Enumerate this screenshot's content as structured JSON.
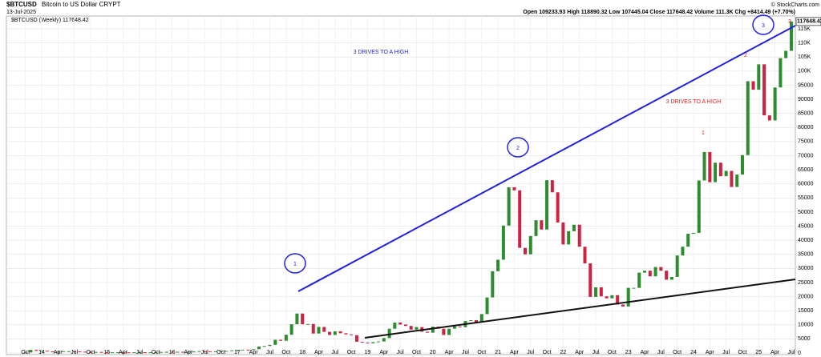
{
  "chart_data": {
    "type": "candle",
    "title": "$BTCUSD",
    "subtitle": "Bitcoin to US Dollar CRYPT",
    "date": "13-Jul-2025",
    "legend_label": "$BTCUSD (Weekly) 117648.42",
    "quote": "Open 109233.93 High 118890.32 Low 107445.04 Close 117648.42 Volume 111.3K Chg +8414.49 (+7.70%)",
    "source": "© StockCharts.com",
    "last_price_label": "117648.42",
    "annotations": [
      "3 DRIVES TO A HIGH",
      "3 DRIVES TO A HIGH",
      "1",
      "2",
      "3",
      "1",
      "2",
      "3"
    ],
    "up_color": "#2e8b2e",
    "down_color": "#cc2244",
    "x": [
      "2013-10",
      "2013-11",
      "2013-12",
      "2014-01",
      "2014-02",
      "2014-03",
      "2014-04",
      "2014-05",
      "2014-06",
      "2014-07",
      "2014-08",
      "2014-09",
      "2014-10",
      "2014-11",
      "2014-12",
      "2015-01",
      "2015-02",
      "2015-03",
      "2015-04",
      "2015-05",
      "2015-06",
      "2015-07",
      "2015-08",
      "2015-09",
      "2015-10",
      "2015-11",
      "2015-12",
      "2016-01",
      "2016-02",
      "2016-03",
      "2016-04",
      "2016-05",
      "2016-06",
      "2016-07",
      "2016-08",
      "2016-09",
      "2016-10",
      "2016-11",
      "2016-12",
      "2017-01",
      "2017-02",
      "2017-03",
      "2017-04",
      "2017-05",
      "2017-06",
      "2017-07",
      "2017-08",
      "2017-09",
      "2017-10",
      "2017-11",
      "2017-12",
      "2018-01",
      "2018-02",
      "2018-03",
      "2018-04",
      "2018-05",
      "2018-06",
      "2018-07",
      "2018-08",
      "2018-09",
      "2018-10",
      "2018-11",
      "2018-12",
      "2019-01",
      "2019-02",
      "2019-03",
      "2019-04",
      "2019-05",
      "2019-06",
      "2019-07",
      "2019-08",
      "2019-09",
      "2019-10",
      "2019-11",
      "2019-12",
      "2020-01",
      "2020-02",
      "2020-03",
      "2020-04",
      "2020-05",
      "2020-06",
      "2020-07",
      "2020-08",
      "2020-09",
      "2020-10",
      "2020-11",
      "2020-12",
      "2021-01",
      "2021-02",
      "2021-03",
      "2021-04",
      "2021-05",
      "2021-06",
      "2021-07",
      "2021-08",
      "2021-09",
      "2021-10",
      "2021-11",
      "2021-12",
      "2022-01",
      "2022-02",
      "2022-03",
      "2022-04",
      "2022-05",
      "2022-06",
      "2022-07",
      "2022-08",
      "2022-09",
      "2022-10",
      "2022-11",
      "2022-12",
      "2023-01",
      "2023-02",
      "2023-03",
      "2023-04",
      "2023-05",
      "2023-06",
      "2023-07",
      "2023-08",
      "2023-09",
      "2023-10",
      "2023-11",
      "2023-12",
      "2024-01",
      "2024-02",
      "2024-03",
      "2024-04",
      "2024-05",
      "2024-06",
      "2024-07",
      "2024-08",
      "2024-09",
      "2024-10",
      "2024-11",
      "2024-12",
      "2025-01",
      "2025-02",
      "2025-03",
      "2025-04",
      "2025-05",
      "2025-06",
      "2025-07"
    ],
    "values": [
      200,
      1100,
      750,
      800,
      550,
      450,
      450,
      630,
      640,
      590,
      480,
      390,
      340,
      380,
      320,
      220,
      250,
      250,
      235,
      230,
      265,
      285,
      230,
      235,
      310,
      380,
      430,
      370,
      435,
      415,
      450,
      530,
      670,
      625,
      575,
      610,
      700,
      740,
      960,
      970,
      1190,
      1080,
      1350,
      2300,
      2480,
      2880,
      4700,
      4340,
      6470,
      10200,
      14000,
      10200,
      10300,
      6900,
      9250,
      7500,
      6400,
      7700,
      7000,
      6600,
      6300,
      4000,
      3700,
      3450,
      3850,
      4100,
      5300,
      8600,
      10800,
      10100,
      9600,
      8300,
      9200,
      7550,
      7200,
      9350,
      8600,
      6400,
      8600,
      9450,
      9150,
      11350,
      11650,
      10800,
      13800,
      19700,
      29000,
      33100,
      45200,
      58800,
      57700,
      37300,
      35000,
      41500,
      47100,
      43800,
      61300,
      57000,
      46300,
      38500,
      43200,
      45500,
      37700,
      31800,
      19900,
      23300,
      20100,
      19400,
      20500,
      17200,
      16500,
      23100,
      23100,
      28500,
      29200,
      27200,
      30500,
      29200,
      26000,
      27000,
      34600,
      37700,
      42300,
      42600,
      61200,
      71300,
      60600,
      67500,
      62700,
      64600,
      58900,
      63300,
      70200,
      96400,
      93400,
      102400,
      84300,
      82500,
      94200,
      104600,
      107200,
      117600
    ],
    "ylim": [
      0,
      115000
    ],
    "yticks": [
      0,
      5000,
      10000,
      15000,
      20000,
      25000,
      30000,
      35000,
      40000,
      45000,
      50000,
      55000,
      60000,
      65000,
      70000,
      75000,
      80000,
      85000,
      90000,
      95000,
      {
        "value": 100000,
        "label": "100K"
      },
      {
        "value": 105000,
        "label": "105K"
      },
      {
        "value": 110000,
        "label": "110K"
      },
      {
        "value": 115000,
        "label": "115K"
      }
    ],
    "xticks": [
      {
        "value": "2013-10",
        "label": "Oct"
      },
      {
        "value": "2014-01",
        "label": "14"
      },
      {
        "value": "2014-04",
        "label": "Apr"
      },
      {
        "value": "2014-07",
        "label": "Jul"
      },
      {
        "value": "2014-10",
        "label": "Oct"
      },
      {
        "value": "2015-01",
        "label": "15"
      },
      {
        "value": "2015-04",
        "label": "Apr"
      },
      {
        "value": "2015-07",
        "label": "Jul"
      },
      {
        "value": "2015-10",
        "label": "Oct"
      },
      {
        "value": "2016-01",
        "label": "16"
      },
      {
        "value": "2016-04",
        "label": "Apr"
      },
      {
        "value": "2016-07",
        "label": "Jul"
      },
      {
        "value": "2016-10",
        "label": "Oct"
      },
      {
        "value": "2017-01",
        "label": "17"
      },
      {
        "value": "2017-04",
        "label": "Apr"
      },
      {
        "value": "2017-07",
        "label": "Jul"
      },
      {
        "value": "2017-10",
        "label": "Oct"
      },
      {
        "value": "2018-01",
        "label": "18"
      },
      {
        "value": "2018-04",
        "label": "Apr"
      },
      {
        "value": "2018-07",
        "label": "Jul"
      },
      {
        "value": "2018-10",
        "label": "Oct"
      },
      {
        "value": "2019-01",
        "label": "19"
      },
      {
        "value": "2019-04",
        "label": "Apr"
      },
      {
        "value": "2019-07",
        "label": "Jul"
      },
      {
        "value": "2019-10",
        "label": "Oct"
      },
      {
        "value": "2020-01",
        "label": "20"
      },
      {
        "value": "2020-04",
        "label": "Apr"
      },
      {
        "value": "2020-07",
        "label": "Jul"
      },
      {
        "value": "2020-10",
        "label": "Oct"
      },
      {
        "value": "2021-01",
        "label": "21"
      },
      {
        "value": "2021-04",
        "label": "Apr"
      },
      {
        "value": "2021-07",
        "label": "Jul"
      },
      {
        "value": "2021-10",
        "label": "Oct"
      },
      {
        "value": "2022-01",
        "label": "22"
      },
      {
        "value": "2022-04",
        "label": "Apr"
      },
      {
        "value": "2022-07",
        "label": "Jul"
      },
      {
        "value": "2022-10",
        "label": "Oct"
      },
      {
        "value": "2023-01",
        "label": "23"
      },
      {
        "value": "2023-04",
        "label": "Apr"
      },
      {
        "value": "2023-07",
        "label": "Jul"
      },
      {
        "value": "2023-10",
        "label": "Oct"
      },
      {
        "value": "2024-01",
        "label": "24"
      },
      {
        "value": "2024-04",
        "label": "Apr"
      },
      {
        "value": "2024-07",
        "label": "Jul"
      },
      {
        "value": "2024-10",
        "label": "Oct"
      },
      {
        "value": "2025-01",
        "label": "25"
      },
      {
        "value": "2025-04",
        "label": "Apr"
      },
      {
        "value": "2025-07",
        "label": "Jul"
      }
    ],
    "grid": true
  }
}
